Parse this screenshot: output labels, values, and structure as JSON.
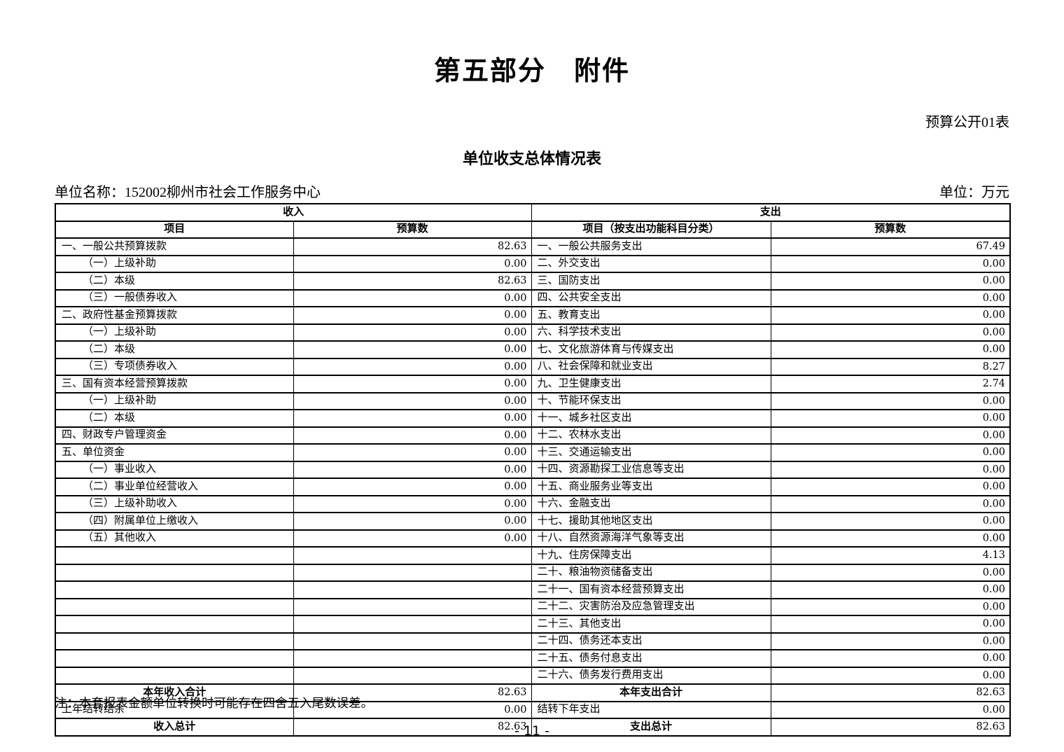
{
  "header": {
    "title": "第五部分　附件",
    "table_ref": "预算公开01表",
    "subtitle": "单位收支总体情况表",
    "unit_name": "单位名称：152002柳州市社会工作服务中心",
    "currency_unit": "单位：万元"
  },
  "table": {
    "income_header": "收入",
    "expense_header": "支出",
    "columns": {
      "income_item": "项目",
      "income_budget": "预算数",
      "expense_item": "项目（按支出功能科目分类）",
      "expense_budget": "预算数"
    },
    "income_rows": [
      {
        "label": "一、一般公共预算拨款",
        "value": "82.63",
        "indent": false
      },
      {
        "label": "（一）上级补助",
        "value": "0.00",
        "indent": true
      },
      {
        "label": "（二）本级",
        "value": "82.63",
        "indent": true
      },
      {
        "label": "（三）一般债券收入",
        "value": "0.00",
        "indent": true
      },
      {
        "label": "二、政府性基金预算拨款",
        "value": "0.00",
        "indent": false
      },
      {
        "label": "（一）上级补助",
        "value": "0.00",
        "indent": true
      },
      {
        "label": "（二）本级",
        "value": "0.00",
        "indent": true
      },
      {
        "label": "（三）专项债券收入",
        "value": "0.00",
        "indent": true
      },
      {
        "label": "三、国有资本经营预算拨款",
        "value": "0.00",
        "indent": false
      },
      {
        "label": "（一）上级补助",
        "value": "0.00",
        "indent": true
      },
      {
        "label": "（二）本级",
        "value": "0.00",
        "indent": true
      },
      {
        "label": "四、财政专户管理资金",
        "value": "0.00",
        "indent": false
      },
      {
        "label": "五、单位资金",
        "value": "0.00",
        "indent": false
      },
      {
        "label": "（一）事业收入",
        "value": "0.00",
        "indent": true
      },
      {
        "label": "（二）事业单位经营收入",
        "value": "0.00",
        "indent": true
      },
      {
        "label": "（三）上级补助收入",
        "value": "0.00",
        "indent": true
      },
      {
        "label": "（四）附属单位上缴收入",
        "value": "0.00",
        "indent": true
      },
      {
        "label": "（五）其他收入",
        "value": "0.00",
        "indent": true
      },
      {
        "label": "",
        "value": ""
      },
      {
        "label": "",
        "value": ""
      },
      {
        "label": "",
        "value": ""
      },
      {
        "label": "",
        "value": ""
      },
      {
        "label": "",
        "value": ""
      },
      {
        "label": "",
        "value": ""
      },
      {
        "label": "",
        "value": ""
      },
      {
        "label": "",
        "value": ""
      },
      {
        "label": "本年收入合计",
        "value": "82.63",
        "total": true
      },
      {
        "label": "上年结转结余",
        "value": "0.00"
      },
      {
        "label": "收入总计",
        "value": "82.63",
        "total": true
      }
    ],
    "expense_rows": [
      {
        "label": "一、一般公共服务支出",
        "value": "67.49"
      },
      {
        "label": "二、外交支出",
        "value": "0.00"
      },
      {
        "label": "三、国防支出",
        "value": "0.00"
      },
      {
        "label": "四、公共安全支出",
        "value": "0.00"
      },
      {
        "label": "五、教育支出",
        "value": "0.00"
      },
      {
        "label": "六、科学技术支出",
        "value": "0.00"
      },
      {
        "label": "七、文化旅游体育与传媒支出",
        "value": "0.00"
      },
      {
        "label": "八、社会保障和就业支出",
        "value": "8.27"
      },
      {
        "label": "九、卫生健康支出",
        "value": "2.74"
      },
      {
        "label": "十、节能环保支出",
        "value": "0.00"
      },
      {
        "label": "十一、城乡社区支出",
        "value": "0.00"
      },
      {
        "label": "十二、农林水支出",
        "value": "0.00"
      },
      {
        "label": "十三、交通运输支出",
        "value": "0.00"
      },
      {
        "label": "十四、资源勘探工业信息等支出",
        "value": "0.00"
      },
      {
        "label": "十五、商业服务业等支出",
        "value": "0.00"
      },
      {
        "label": "十六、金融支出",
        "value": "0.00"
      },
      {
        "label": "十七、援助其他地区支出",
        "value": "0.00"
      },
      {
        "label": "十八、自然资源海洋气象等支出",
        "value": "0.00"
      },
      {
        "label": "十九、住房保障支出",
        "value": "4.13"
      },
      {
        "label": "二十、粮油物资储备支出",
        "value": "0.00"
      },
      {
        "label": "二十一、国有资本经营预算支出",
        "value": "0.00"
      },
      {
        "label": "二十二、灾害防治及应急管理支出",
        "value": "0.00"
      },
      {
        "label": "二十三、其他支出",
        "value": "0.00"
      },
      {
        "label": "二十四、债务还本支出",
        "value": "0.00"
      },
      {
        "label": "二十五、债务付息支出",
        "value": "0.00"
      },
      {
        "label": "二十六、债务发行费用支出",
        "value": "0.00"
      },
      {
        "label": "本年支出合计",
        "value": "82.63",
        "total": true
      },
      {
        "label": "结转下年支出",
        "value": "0.00"
      },
      {
        "label": "支出总计",
        "value": "82.63",
        "total": true
      }
    ]
  },
  "footer": {
    "note": "注：本套报表金额单位转换时可能存在四舍五入尾数误差。",
    "page_number": "- 11 -"
  }
}
